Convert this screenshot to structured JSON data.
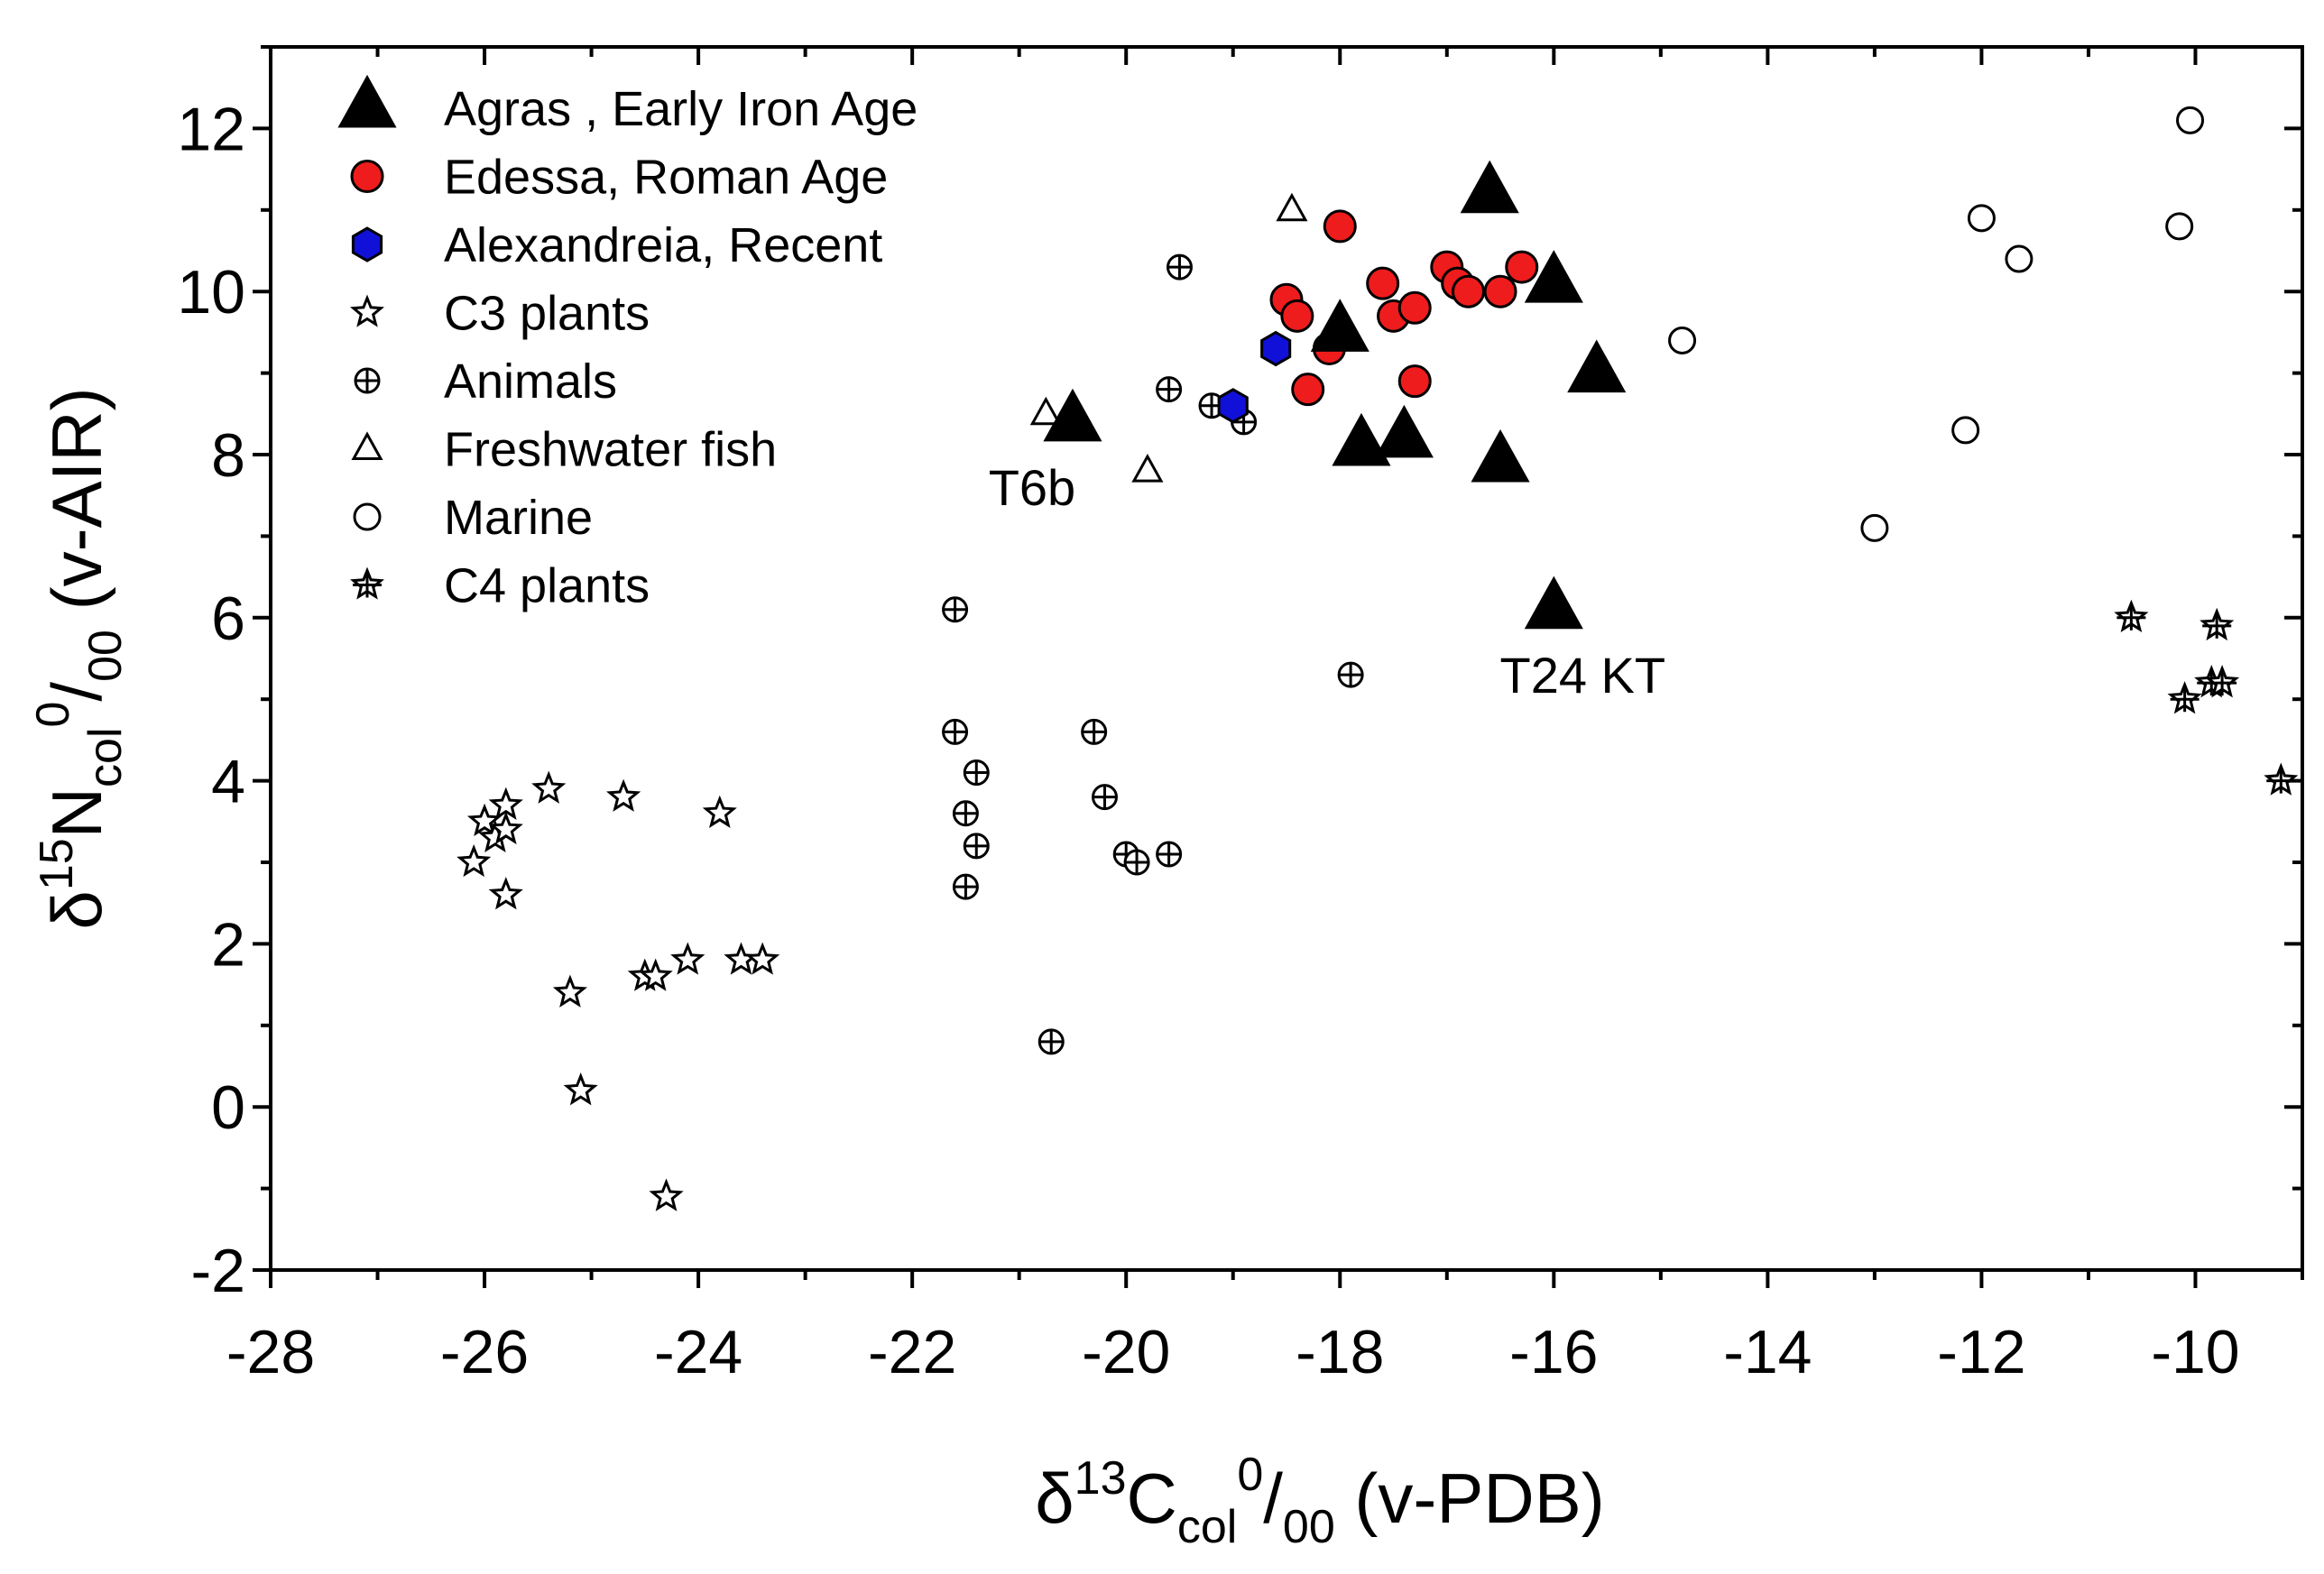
{
  "chart_data": {
    "type": "scatter",
    "xlim": [
      -28,
      -9
    ],
    "ylim": [
      -2,
      13
    ],
    "xticks": [
      -28,
      -26,
      -24,
      -22,
      -20,
      -18,
      -16,
      -14,
      -12,
      -10
    ],
    "yticks": [
      -2,
      0,
      2,
      4,
      6,
      8,
      10,
      12
    ],
    "xlabel": {
      "pre": "δ",
      "sup1": "13",
      "main": "C",
      "sub": "col",
      "sup2": "0",
      "sub2": "00",
      "post": " (v-PDB)"
    },
    "ylabel": {
      "pre": "δ",
      "sup1": "15",
      "main": "N",
      "sub": "col",
      "sup2": "0",
      "sub2": "00",
      "post": " (v-AIR)"
    },
    "legend_position": "top-left",
    "series": [
      {
        "name": "Agras , Early Iron Age",
        "marker": "triangle-filled",
        "color": "#000000",
        "x": [
          -20.5,
          -18.0,
          -17.8,
          -17.4,
          -16.6,
          -16.5,
          -16.0,
          -15.6,
          -16.0
        ],
        "y": [
          8.4,
          9.5,
          8.1,
          8.2,
          11.2,
          7.9,
          10.1,
          9.0,
          6.1
        ]
      },
      {
        "name": "Edessa, Roman Age",
        "marker": "circle-red",
        "color": "#ee1c1c",
        "x": [
          -18.0,
          -18.5,
          -18.4,
          -18.3,
          -18.1,
          -17.6,
          -17.5,
          -17.3,
          -17.3,
          -17.0,
          -16.9,
          -16.8,
          -16.5,
          -16.3
        ],
        "y": [
          10.8,
          9.9,
          9.7,
          8.8,
          9.3,
          10.1,
          9.7,
          9.8,
          8.9,
          10.3,
          10.1,
          10.0,
          10.0,
          10.3
        ]
      },
      {
        "name": "Alexandreia, Recent",
        "marker": "hexagon-blue",
        "color": "#1010d8",
        "x": [
          -18.6,
          -19.0
        ],
        "y": [
          9.3,
          8.6
        ]
      },
      {
        "name": "C3 plants",
        "marker": "star-open",
        "color": "#000000",
        "x": [
          -26.1,
          -26.0,
          -25.9,
          -25.8,
          -25.8,
          -25.8,
          -25.4,
          -25.2,
          -25.1,
          -24.7,
          -24.5,
          -24.4,
          -24.3,
          -24.1,
          -23.8,
          -23.6,
          -23.4
        ],
        "y": [
          3.0,
          3.5,
          3.3,
          3.7,
          3.4,
          2.6,
          3.9,
          1.4,
          0.2,
          3.8,
          1.6,
          1.6,
          -1.1,
          1.8,
          3.6,
          1.8,
          1.8
        ]
      },
      {
        "name": "Animals",
        "marker": "circle-plus",
        "color": "#000000",
        "x": [
          -19.5,
          -19.6,
          -19.2,
          -18.9,
          -21.6,
          -21.6,
          -21.4,
          -21.5,
          -21.4,
          -21.5,
          -20.3,
          -20.2,
          -20.0,
          -19.9,
          -19.6,
          -20.7,
          -17.9
        ],
        "y": [
          10.3,
          8.8,
          8.6,
          8.4,
          6.1,
          4.6,
          4.1,
          3.6,
          3.2,
          2.7,
          4.6,
          3.8,
          3.1,
          3.0,
          3.1,
          0.8,
          5.3
        ]
      },
      {
        "name": "Freshwater fish",
        "marker": "triangle-open",
        "color": "#000000",
        "x": [
          -18.45,
          -20.75,
          -19.8
        ],
        "y": [
          11.0,
          8.5,
          7.8
        ]
      },
      {
        "name": "Marine",
        "marker": "circle-open",
        "color": "#000000",
        "x": [
          -10.05,
          -12.0,
          -10.15,
          -11.65,
          -14.8,
          -12.15,
          -13.0
        ],
        "y": [
          12.1,
          10.9,
          10.8,
          10.4,
          9.4,
          8.3,
          7.1
        ]
      },
      {
        "name": "C4 plants",
        "marker": "star-plus",
        "color": "#000000",
        "x": [
          -10.6,
          -9.8,
          -10.1,
          -9.85,
          -9.75,
          -9.2
        ],
        "y": [
          6.0,
          5.9,
          5.0,
          5.2,
          5.2,
          4.0
        ]
      }
    ],
    "annotations": [
      {
        "text": "T6b",
        "x": -20.5,
        "y": 8.4
      },
      {
        "text": "T24 KT",
        "x": -16.0,
        "y": 6.1
      }
    ]
  }
}
